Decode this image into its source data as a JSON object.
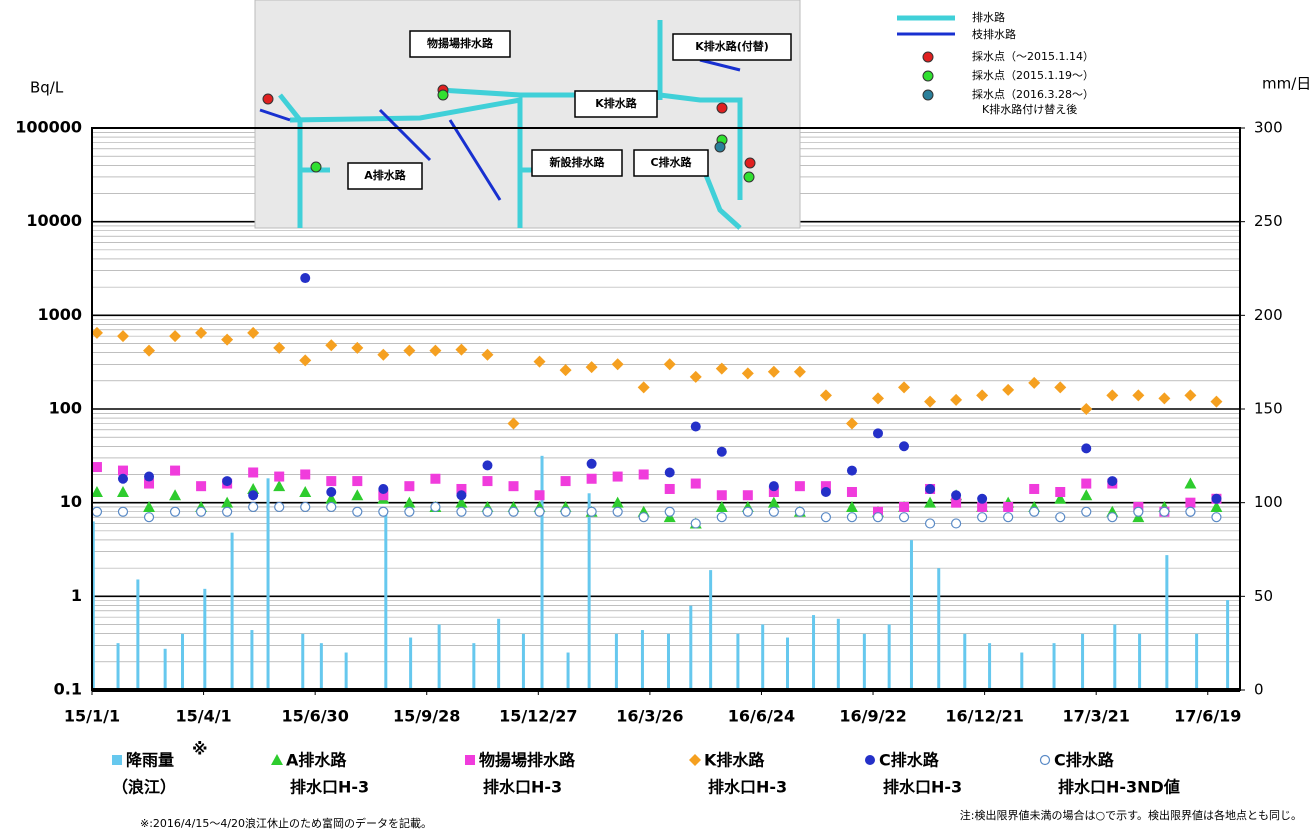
{
  "chart_data": {
    "type": "scatter",
    "y_label": "Bq/L",
    "y2_label": "mm/日",
    "log_y": true,
    "grid": true,
    "xlim": [
      "15/1/1",
      "17/7/15"
    ],
    "xticks": [
      "15/1/1",
      "15/4/1",
      "15/6/30",
      "15/9/28",
      "15/12/27",
      "16/3/26",
      "16/6/24",
      "16/9/22",
      "16/12/21",
      "17/3/21",
      "17/6/19"
    ],
    "ylim": [
      0.1,
      100000
    ],
    "yticks": [
      0.1,
      1,
      10,
      100,
      1000,
      10000,
      100000
    ],
    "y2lim": [
      0,
      300
    ],
    "y2ticks": [
      0,
      50,
      100,
      150,
      200,
      250,
      300
    ],
    "x": [
      "15/1/5",
      "15/1/26",
      "15/2/16",
      "15/3/9",
      "15/3/30",
      "15/4/20",
      "15/5/11",
      "15/6/1",
      "15/6/22",
      "15/7/13",
      "15/8/3",
      "15/8/24",
      "15/9/14",
      "15/10/5",
      "15/10/26",
      "15/11/16",
      "15/12/7",
      "15/12/28",
      "16/1/18",
      "16/2/8",
      "16/2/29",
      "16/3/21",
      "16/4/11",
      "16/5/2",
      "16/5/23",
      "16/6/13",
      "16/7/4",
      "16/7/25",
      "16/8/15",
      "16/9/5",
      "16/9/26",
      "16/10/17",
      "16/11/7",
      "16/11/28",
      "16/12/19",
      "17/1/9",
      "17/1/30",
      "17/2/20",
      "17/3/13",
      "17/4/3",
      "17/4/24",
      "17/5/15",
      "17/6/5",
      "17/6/26"
    ],
    "series": [
      {
        "name": "降雨量",
        "mark": "※",
        "name2": "（浪江）",
        "type": "bar",
        "axis": "y2",
        "color": "#66c8ee",
        "x": [
          "15/1/2",
          "15/1/22",
          "15/2/7",
          "15/3/1",
          "15/3/15",
          "15/4/2",
          "15/4/24",
          "15/5/10",
          "15/5/23",
          "15/6/20",
          "15/7/5",
          "15/7/25",
          "15/8/26",
          "15/9/15",
          "15/10/8",
          "15/11/5",
          "15/11/25",
          "15/12/15",
          "15/12/30",
          "16/1/20",
          "16/2/6",
          "16/2/28",
          "16/3/20",
          "16/4/10",
          "16/4/28",
          "16/5/14",
          "16/6/5",
          "16/6/25",
          "16/7/15",
          "16/8/5",
          "16/8/25",
          "16/9/15",
          "16/10/5",
          "16/10/23",
          "16/11/14",
          "16/12/5",
          "16/12/25",
          "17/1/20",
          "17/2/15",
          "17/3/10",
          "17/4/5",
          "17/4/25",
          "17/5/17",
          "17/6/10",
          "17/7/5"
        ],
        "values": [
          90,
          25,
          59,
          22,
          30,
          54,
          84,
          32,
          113,
          30,
          25,
          20,
          95,
          28,
          35,
          25,
          38,
          30,
          125,
          20,
          105,
          30,
          32,
          30,
          45,
          64,
          30,
          35,
          28,
          40,
          38,
          30,
          35,
          80,
          65,
          30,
          25,
          20,
          25,
          30,
          35,
          30,
          72,
          30,
          48
        ]
      },
      {
        "name": "A排水路",
        "name2": "排水口H-3",
        "marker": "triangle",
        "color": "#2ecc2e",
        "values": [
          13,
          13,
          9,
          12,
          9,
          10,
          14,
          15,
          13,
          11,
          12,
          11,
          10,
          9,
          10,
          9,
          9,
          9,
          9,
          8,
          10,
          8,
          7,
          6,
          9,
          9,
          10,
          8,
          null,
          9,
          8,
          9,
          10,
          12,
          9,
          10,
          9,
          11,
          12,
          8,
          7,
          9,
          16,
          9
        ]
      },
      {
        "name": "物揚場排水路",
        "name2": "排水口H-3",
        "marker": "square",
        "color": "#f03cdc",
        "values": [
          24,
          22,
          16,
          22,
          15,
          16,
          21,
          19,
          20,
          17,
          17,
          12,
          15,
          18,
          14,
          17,
          15,
          12,
          17,
          18,
          19,
          20,
          14,
          16,
          12,
          12,
          13,
          15,
          15,
          13,
          8,
          9,
          14,
          10,
          9,
          9,
          14,
          13,
          16,
          16,
          9,
          8,
          10,
          11
        ]
      },
      {
        "name": "K排水路",
        "name2": "排水口H-3",
        "marker": "diamond",
        "color": "#f5a020",
        "values": [
          650,
          600,
          420,
          600,
          650,
          550,
          650,
          450,
          330,
          480,
          450,
          380,
          420,
          420,
          430,
          380,
          70,
          320,
          260,
          280,
          300,
          170,
          300,
          220,
          270,
          240,
          250,
          250,
          140,
          70,
          130,
          170,
          120,
          125,
          140,
          160,
          190,
          170,
          100,
          140,
          140,
          130,
          140,
          120
        ]
      },
      {
        "name": "C排水路",
        "name2": "排水口H-3",
        "marker": "circle",
        "color": "#2430c8",
        "values": [
          null,
          18,
          19,
          null,
          null,
          17,
          12,
          null,
          2500,
          13,
          null,
          14,
          null,
          null,
          12,
          25,
          null,
          null,
          null,
          26,
          null,
          null,
          21,
          65,
          35,
          null,
          15,
          null,
          13,
          22,
          55,
          40,
          14,
          12,
          11,
          null,
          null,
          null,
          38,
          17,
          null,
          null,
          8,
          11
        ]
      },
      {
        "name": "C排水路",
        "name2": "排水口H-3ND値",
        "marker": "circle-open",
        "color": "#5a8ac6",
        "values": [
          8,
          8,
          7,
          8,
          8,
          8,
          9,
          9,
          9,
          9,
          8,
          8,
          8,
          9,
          8,
          8,
          8,
          8,
          8,
          8,
          8,
          7,
          8,
          6,
          7,
          8,
          8,
          8,
          7,
          7,
          7,
          7,
          6,
          6,
          7,
          7,
          8,
          7,
          8,
          7,
          8,
          8,
          8,
          7
        ]
      }
    ],
    "map": {
      "labels": [
        "物揚場排水路",
        "K排水路(付替)",
        "K排水路",
        "A排水路",
        "新設排水路",
        "C排水路"
      ]
    },
    "map_legend": [
      "排水路",
      "枝排水路",
      "採水点（～2015.1.14）",
      "採水点（2015.1.19～）",
      "採水点（2016.3.28～）",
      "K排水路付け替え後"
    ],
    "notes": [
      "※:2016/4/15～4/20浪江休止のため富岡のデータを記載。",
      "注:検出限界値未満の場合は○で示す。検出限界値は各地点とも同じ。"
    ]
  }
}
